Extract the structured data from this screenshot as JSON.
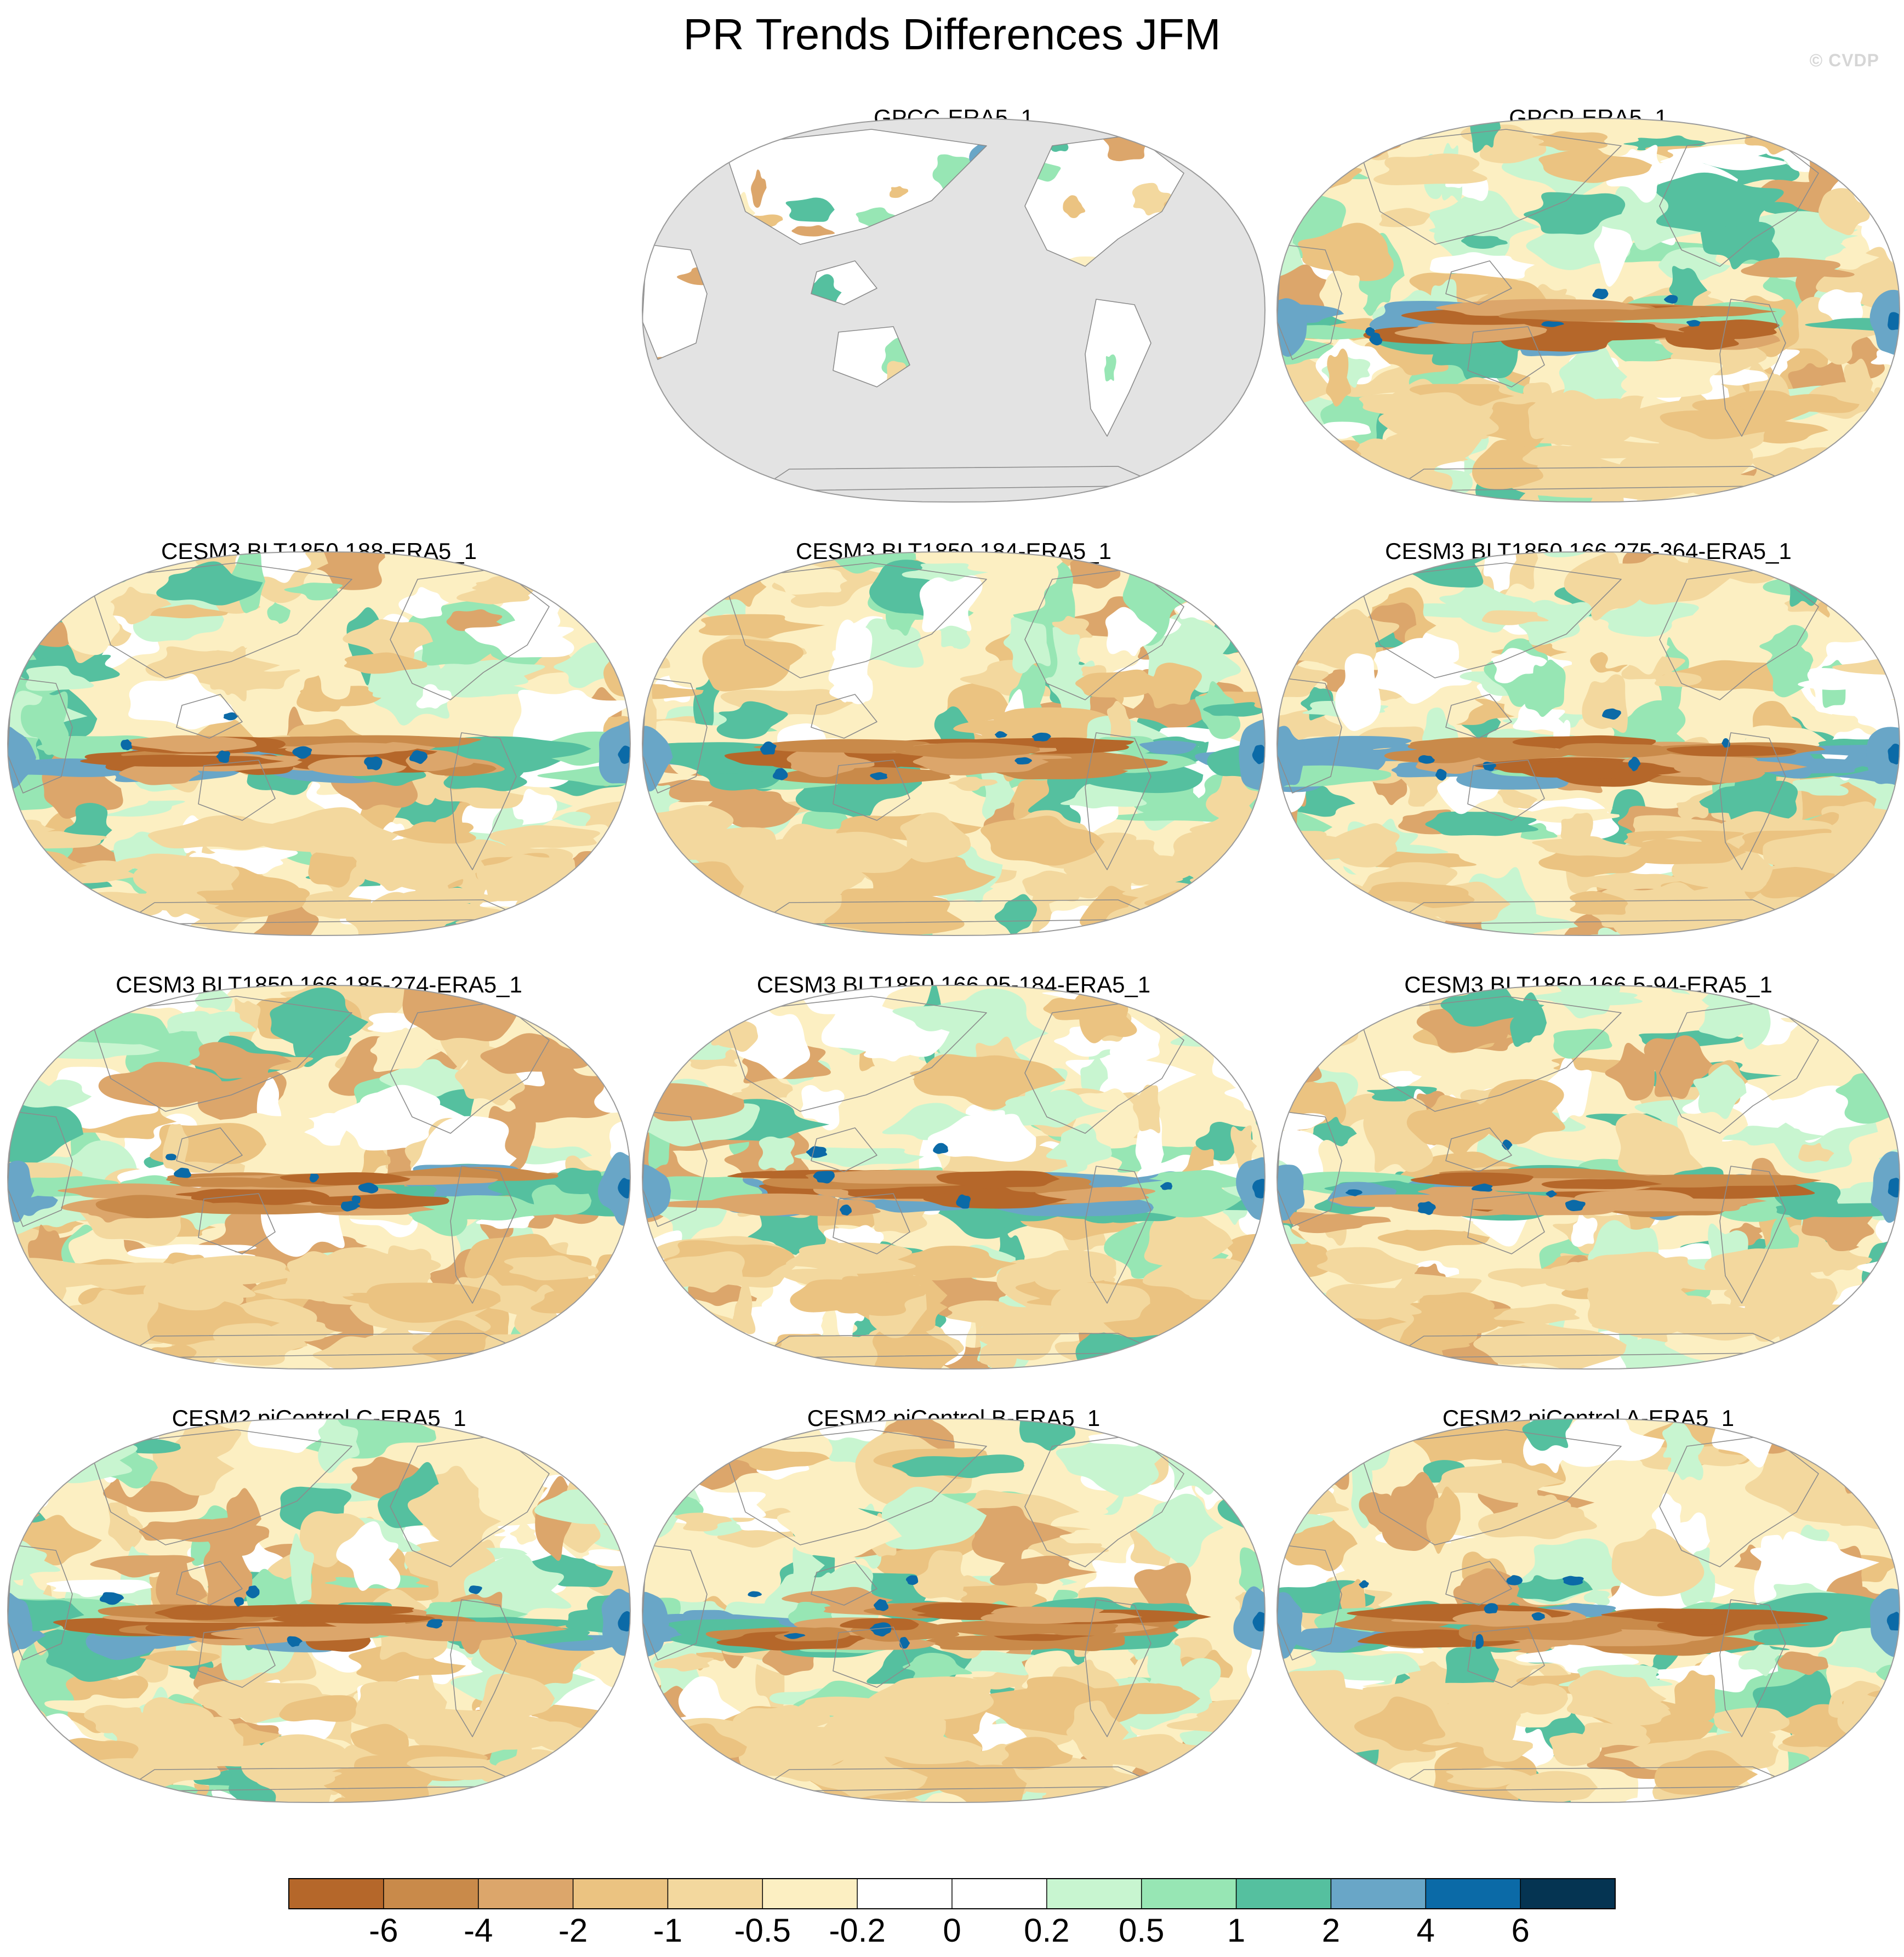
{
  "title": "PR Trends Differences JFM",
  "watermark": "© CVDP",
  "colors": {
    "land_mask": "#e3e3e3",
    "coastline": "#8c8c8c",
    "frame": "#9a9a9a",
    "zero_fill": "#ffffff"
  },
  "panels": [
    {
      "title": "GPCC-ERA5_1",
      "masked": true,
      "seed": 11
    },
    {
      "title": "GPCP-ERA5_1",
      "masked": false,
      "seed": 23
    },
    {
      "title": "CESM3 BLT1850 188-ERA5_1",
      "masked": false,
      "seed": 37
    },
    {
      "title": "CESM3 BLT1850 184-ERA5_1",
      "masked": false,
      "seed": 41
    },
    {
      "title": "CESM3 BLT1850 166 275-364-ERA5_1",
      "masked": false,
      "seed": 53
    },
    {
      "title": "CESM3 BLT1850 166 185-274-ERA5_1",
      "masked": false,
      "seed": 67
    },
    {
      "title": "CESM3 BLT1850 166 95-184-ERA5_1",
      "masked": false,
      "seed": 71
    },
    {
      "title": "CESM3 BLT1850 166 5-94-ERA5_1",
      "masked": false,
      "seed": 83
    },
    {
      "title": "CESM2 piControl C-ERA5_1",
      "masked": false,
      "seed": 97
    },
    {
      "title": "CESM2 piControl B-ERA5_1",
      "masked": false,
      "seed": 101
    },
    {
      "title": "CESM2 piControl A-ERA5_1",
      "masked": false,
      "seed": 113
    }
  ],
  "colorbar": {
    "labels": [
      "-6",
      "-4",
      "-2",
      "-1",
      "-0.5",
      "-0.2",
      "0",
      "0.2",
      "0.5",
      "1",
      "2",
      "4",
      "6"
    ],
    "colors": [
      "#b5672a",
      "#c98a4a",
      "#dca66b",
      "#ebc381",
      "#f3d89e",
      "#fcefc2",
      "#ffffff",
      "#ffffff",
      "#c8f5d0",
      "#97e6b4",
      "#55c09f",
      "#69a6c7",
      "#0b6aa7",
      "#053452"
    ]
  }
}
